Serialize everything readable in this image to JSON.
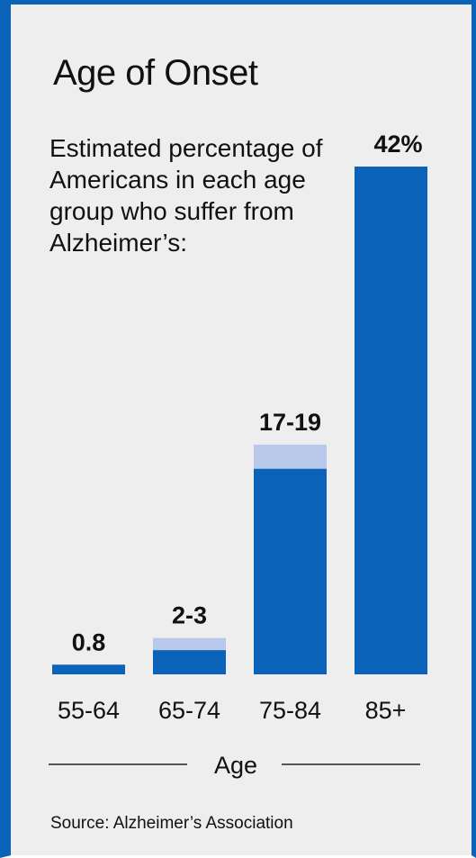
{
  "title": "Age of Onset",
  "subtitle": "Estimated percentage of Americans in each age group who suffer from Alzheimer’s:",
  "source": "Source: Alzheimer’s Association",
  "colors": {
    "border": "#0a63b8",
    "background": "#eeeeee",
    "bar": "#0a63b8",
    "bar_range": "#b8c8ea",
    "text": "#111111",
    "rule": "#555555"
  },
  "chart_data": {
    "type": "bar",
    "stacked_range": true,
    "categories": [
      "55-64",
      "65-74",
      "75-84",
      "85+"
    ],
    "series": [
      {
        "values": [
          0.8,
          2,
          17,
          42
        ]
      },
      {
        "values": [
          0.8,
          3,
          19,
          42
        ]
      }
    ],
    "data_labels": [
      "0.8",
      "2-3",
      "17-19",
      "42%"
    ],
    "title": "Age of Onset",
    "xlabel": "Age",
    "ylabel": "",
    "ylim": [
      0,
      42
    ],
    "grid": false,
    "legend": "none"
  }
}
